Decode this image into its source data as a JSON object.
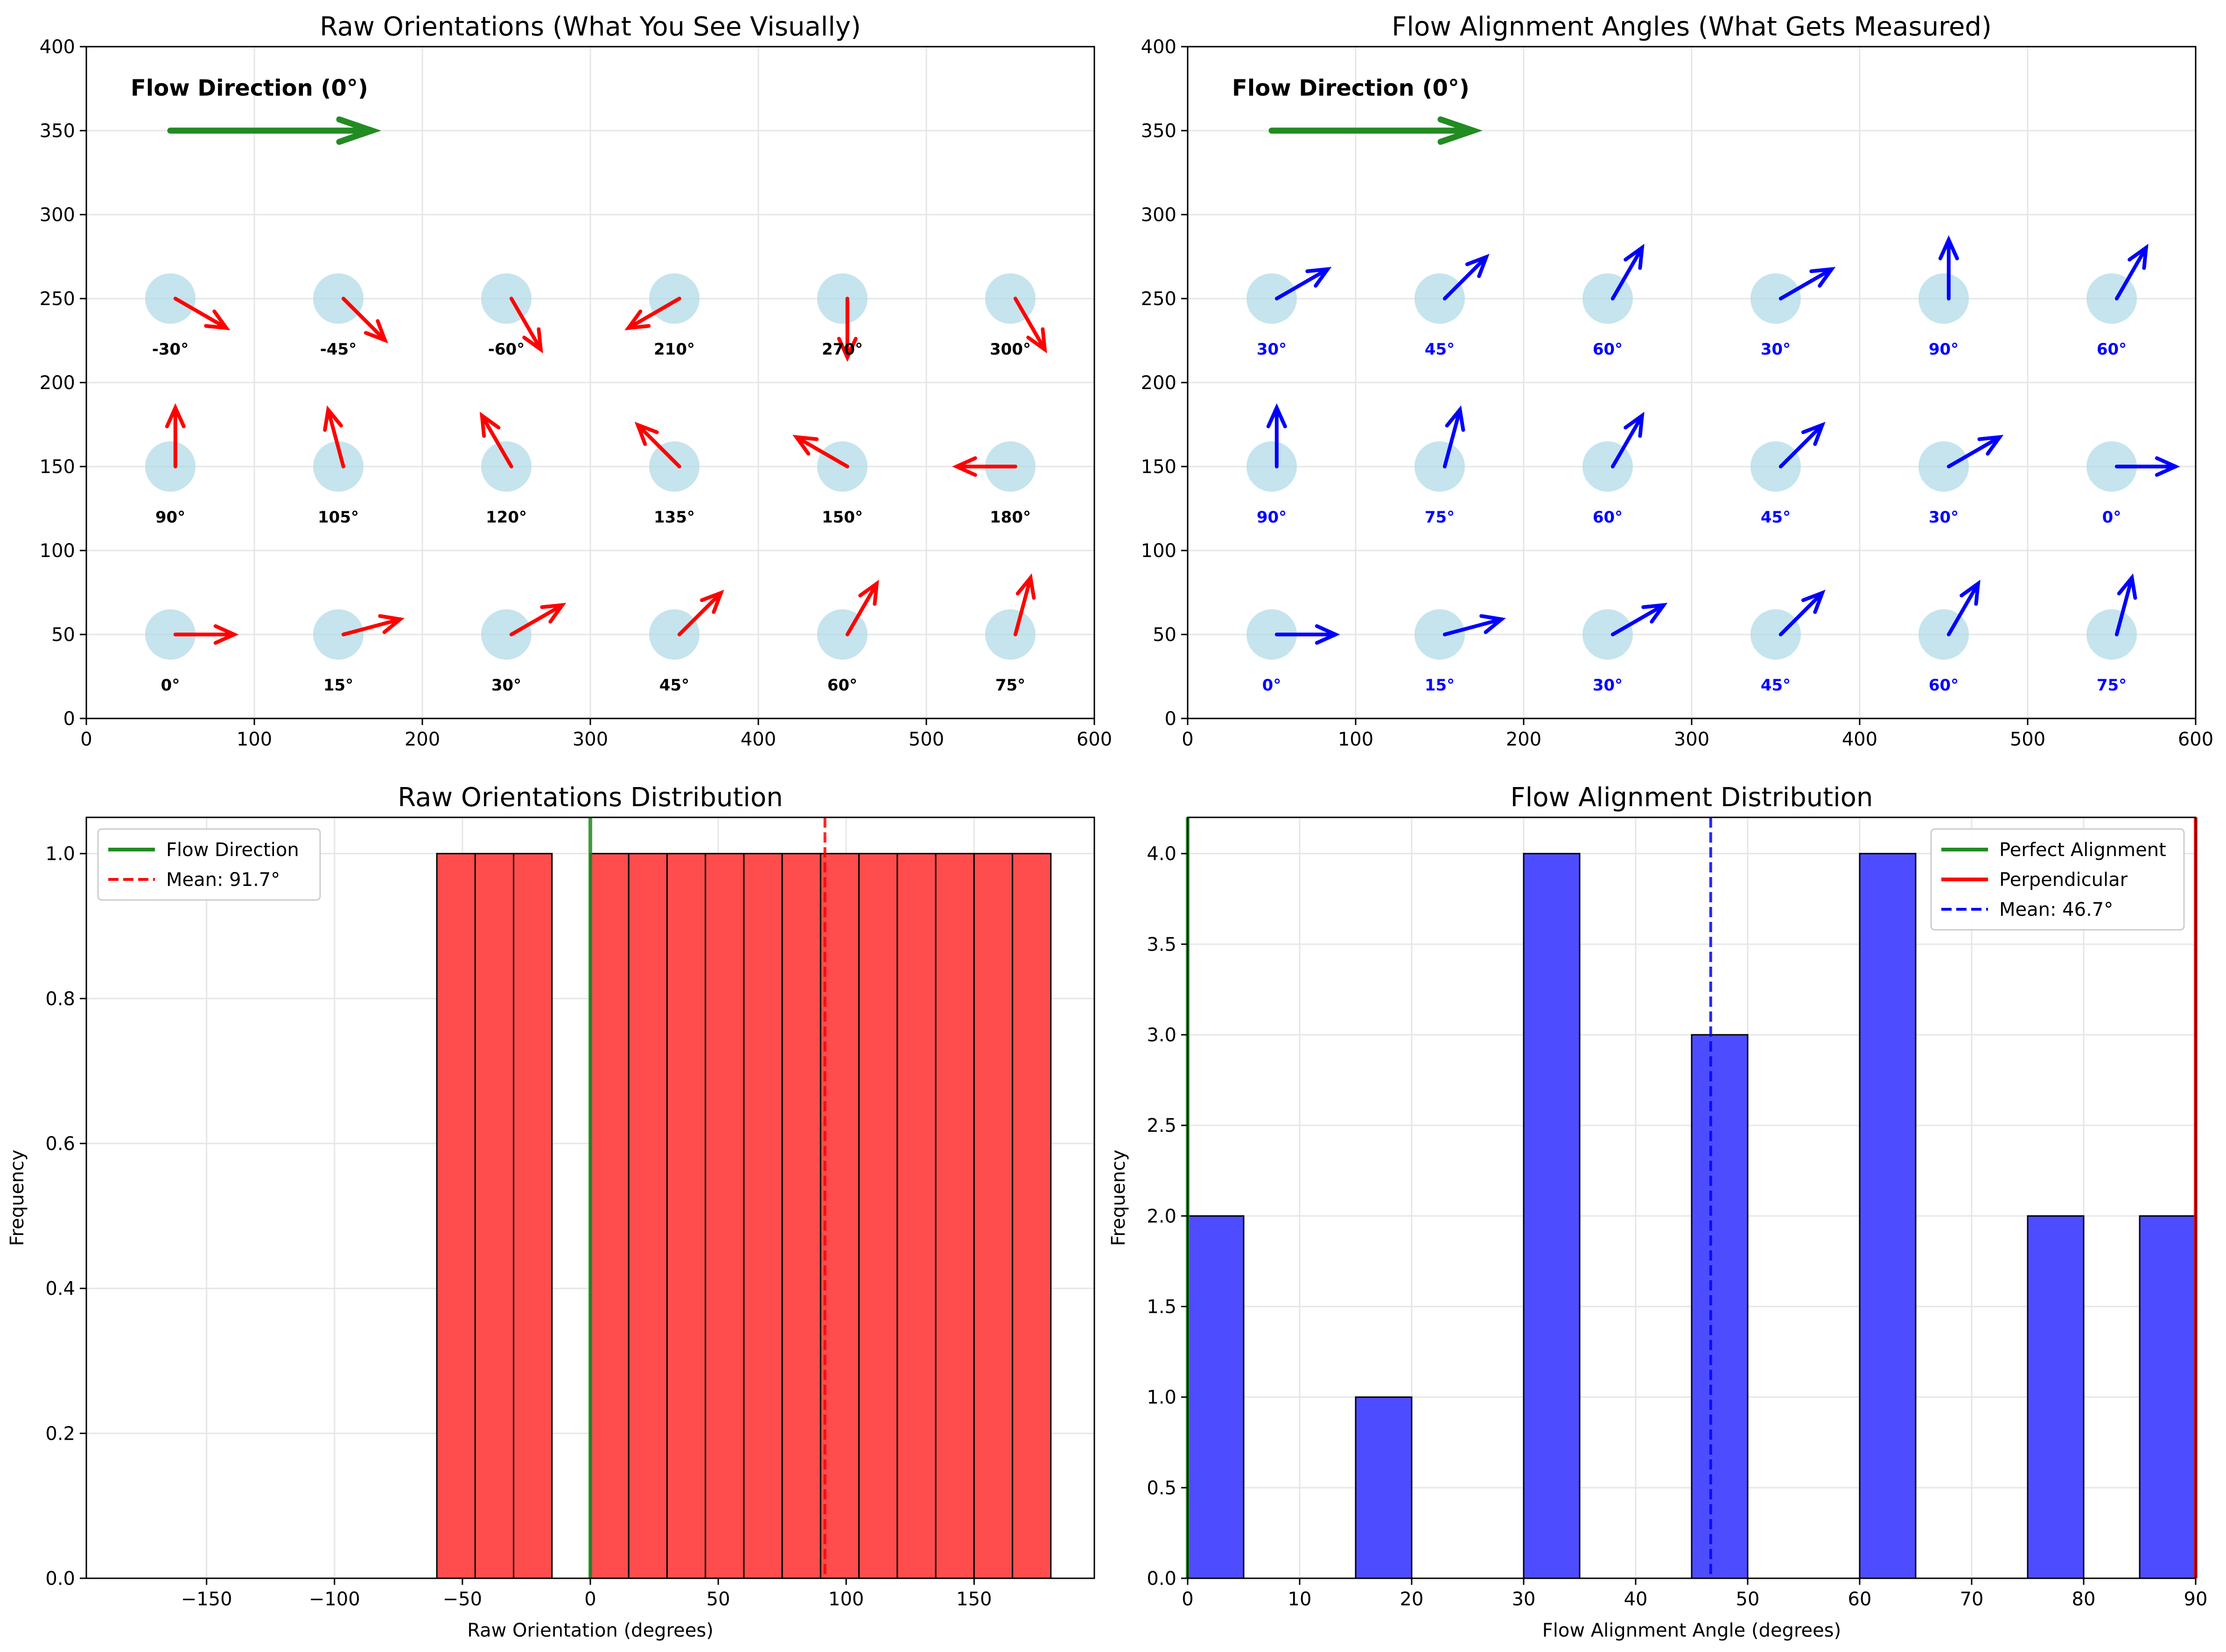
{
  "colors": {
    "red": "#ff0000",
    "blue": "#0000ff",
    "green": "#228b22",
    "circle": "#add8e6",
    "hist_red": "#ff4d4d",
    "hist_blue": "#4d4dff",
    "grid": "#e6e6e6",
    "text": "#000000"
  },
  "chart_data": [
    {
      "type": "scatter",
      "title": "Raw Orientations (What You See Visually)",
      "xlim": [
        0,
        600
      ],
      "ylim": [
        0,
        400
      ],
      "xticks": [
        0,
        100,
        200,
        300,
        400,
        500,
        600
      ],
      "yticks": [
        0,
        50,
        100,
        150,
        200,
        250,
        300,
        350,
        400
      ],
      "grid": true,
      "flow_label": "Flow Direction (0°)",
      "flow_arrow": {
        "x_start": 50,
        "x_end": 170,
        "y": 350,
        "color": "green"
      },
      "arrow_color": "red",
      "label_color": "black",
      "arrow_length": 35,
      "points": [
        {
          "x": 50,
          "y": 50,
          "angle": 0,
          "label": "0°"
        },
        {
          "x": 150,
          "y": 50,
          "angle": 15,
          "label": "15°"
        },
        {
          "x": 250,
          "y": 50,
          "angle": 30,
          "label": "30°"
        },
        {
          "x": 350,
          "y": 50,
          "angle": 45,
          "label": "45°"
        },
        {
          "x": 450,
          "y": 50,
          "angle": 60,
          "label": "60°"
        },
        {
          "x": 550,
          "y": 50,
          "angle": 75,
          "label": "75°"
        },
        {
          "x": 50,
          "y": 150,
          "angle": 90,
          "label": "90°"
        },
        {
          "x": 150,
          "y": 150,
          "angle": 105,
          "label": "105°"
        },
        {
          "x": 250,
          "y": 150,
          "angle": 120,
          "label": "120°"
        },
        {
          "x": 350,
          "y": 150,
          "angle": 135,
          "label": "135°"
        },
        {
          "x": 450,
          "y": 150,
          "angle": 150,
          "label": "150°"
        },
        {
          "x": 550,
          "y": 150,
          "angle": 180,
          "label": "180°"
        },
        {
          "x": 50,
          "y": 250,
          "angle": -30,
          "label": "-30°"
        },
        {
          "x": 150,
          "y": 250,
          "angle": -45,
          "label": "-45°"
        },
        {
          "x": 250,
          "y": 250,
          "angle": -60,
          "label": "-60°"
        },
        {
          "x": 350,
          "y": 250,
          "angle": 210,
          "label": "210°"
        },
        {
          "x": 450,
          "y": 250,
          "angle": 270,
          "label": "270°"
        },
        {
          "x": 550,
          "y": 250,
          "angle": 300,
          "label": "300°"
        }
      ]
    },
    {
      "type": "scatter",
      "title": "Flow Alignment Angles (What Gets Measured)",
      "xlim": [
        0,
        600
      ],
      "ylim": [
        0,
        400
      ],
      "xticks": [
        0,
        100,
        200,
        300,
        400,
        500,
        600
      ],
      "yticks": [
        0,
        50,
        100,
        150,
        200,
        250,
        300,
        350,
        400
      ],
      "grid": true,
      "flow_label": "Flow Direction (0°)",
      "flow_arrow": {
        "x_start": 50,
        "x_end": 170,
        "y": 350,
        "color": "green"
      },
      "arrow_color": "blue",
      "label_color": "blue",
      "arrow_length": 35,
      "points": [
        {
          "x": 50,
          "y": 50,
          "angle": 0,
          "label": "0°"
        },
        {
          "x": 150,
          "y": 50,
          "angle": 15,
          "label": "15°"
        },
        {
          "x": 250,
          "y": 50,
          "angle": 30,
          "label": "30°"
        },
        {
          "x": 350,
          "y": 50,
          "angle": 45,
          "label": "45°"
        },
        {
          "x": 450,
          "y": 50,
          "angle": 60,
          "label": "60°"
        },
        {
          "x": 550,
          "y": 50,
          "angle": 75,
          "label": "75°"
        },
        {
          "x": 50,
          "y": 150,
          "angle": 90,
          "label": "90°"
        },
        {
          "x": 150,
          "y": 150,
          "angle": 75,
          "label": "75°"
        },
        {
          "x": 250,
          "y": 150,
          "angle": 60,
          "label": "60°"
        },
        {
          "x": 350,
          "y": 150,
          "angle": 45,
          "label": "45°"
        },
        {
          "x": 450,
          "y": 150,
          "angle": 30,
          "label": "30°"
        },
        {
          "x": 550,
          "y": 150,
          "angle": 0,
          "label": "0°"
        },
        {
          "x": 50,
          "y": 250,
          "angle": 30,
          "label": "30°"
        },
        {
          "x": 150,
          "y": 250,
          "angle": 45,
          "label": "45°"
        },
        {
          "x": 250,
          "y": 250,
          "angle": 60,
          "label": "60°"
        },
        {
          "x": 350,
          "y": 250,
          "angle": 30,
          "label": "30°"
        },
        {
          "x": 450,
          "y": 250,
          "angle": 90,
          "label": "90°"
        },
        {
          "x": 550,
          "y": 250,
          "angle": 60,
          "label": "60°"
        }
      ]
    },
    {
      "type": "bar",
      "title": "Raw Orientations Distribution",
      "xlabel": "Raw Orientation (degrees)",
      "ylabel": "Frequency",
      "xlim": [
        -197,
        197
      ],
      "ylim": [
        0,
        1.05
      ],
      "xticks": [
        -150,
        -100,
        -50,
        0,
        50,
        100,
        150
      ],
      "yticks": [
        0.0,
        0.2,
        0.4,
        0.6,
        0.8,
        1.0
      ],
      "grid": true,
      "bar_color": "hist_red",
      "bins": [
        {
          "left": -60,
          "right": -45,
          "value": 1
        },
        {
          "left": -45,
          "right": -30,
          "value": 1
        },
        {
          "left": -30,
          "right": -15,
          "value": 1
        },
        {
          "left": 0,
          "right": 15,
          "value": 1
        },
        {
          "left": 15,
          "right": 30,
          "value": 1
        },
        {
          "left": 30,
          "right": 45,
          "value": 1
        },
        {
          "left": 45,
          "right": 60,
          "value": 1
        },
        {
          "left": 60,
          "right": 75,
          "value": 1
        },
        {
          "left": 75,
          "right": 90,
          "value": 1
        },
        {
          "left": 90,
          "right": 105,
          "value": 1
        },
        {
          "left": 105,
          "right": 120,
          "value": 1
        },
        {
          "left": 120,
          "right": 135,
          "value": 1
        },
        {
          "left": 135,
          "right": 150,
          "value": 1
        },
        {
          "left": 150,
          "right": 165,
          "value": 1
        },
        {
          "left": 165,
          "right": 180,
          "value": 1
        }
      ],
      "baseline": [
        -180,
        180
      ],
      "vlines": [
        {
          "x": 0,
          "color": "green",
          "dashed": false,
          "width": 8,
          "label": "Flow Direction"
        },
        {
          "x": 91.7,
          "color": "red",
          "dashed": true,
          "width": 6,
          "label": "Mean: 91.7°"
        }
      ],
      "legend_placement": "top-left"
    },
    {
      "type": "bar",
      "title": "Flow Alignment Distribution",
      "xlabel": "Flow Alignment Angle (degrees)",
      "ylabel": "Frequency",
      "xlim": [
        0,
        90
      ],
      "ylim": [
        0,
        4.2
      ],
      "xticks": [
        0,
        10,
        20,
        30,
        40,
        50,
        60,
        70,
        80,
        90
      ],
      "yticks": [
        0.0,
        0.5,
        1.0,
        1.5,
        2.0,
        2.5,
        3.0,
        3.5,
        4.0
      ],
      "grid": true,
      "bar_color": "hist_blue",
      "bins": [
        {
          "left": 0,
          "right": 5,
          "value": 2
        },
        {
          "left": 15,
          "right": 20,
          "value": 1
        },
        {
          "left": 30,
          "right": 35,
          "value": 4
        },
        {
          "left": 45,
          "right": 50,
          "value": 3
        },
        {
          "left": 60,
          "right": 65,
          "value": 4
        },
        {
          "left": 75,
          "right": 80,
          "value": 2
        },
        {
          "left": 85,
          "right": 90,
          "value": 2
        }
      ],
      "vlines": [
        {
          "x": 0,
          "color": "green",
          "dashed": false,
          "width": 8,
          "label": "Perfect Alignment"
        },
        {
          "x": 90,
          "color": "red",
          "dashed": false,
          "width": 8,
          "label": "Perpendicular"
        },
        {
          "x": 46.7,
          "color": "blue",
          "dashed": true,
          "width": 6,
          "label": "Mean: 46.7°"
        }
      ],
      "legend_placement": "top-right"
    }
  ]
}
